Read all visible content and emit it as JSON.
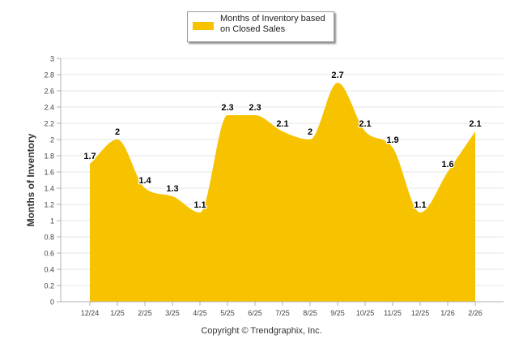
{
  "chart_data": {
    "type": "area",
    "title": "",
    "categories": [
      "12/24",
      "1/25",
      "2/25",
      "3/25",
      "4/25",
      "5/25",
      "6/25",
      "7/25",
      "8/25",
      "9/25",
      "10/25",
      "11/25",
      "12/25",
      "1/26",
      "2/26"
    ],
    "series": [
      {
        "name": "Months of Inventory based on Closed Sales",
        "values": [
          1.7,
          2,
          1.4,
          1.3,
          1.1,
          2.3,
          2.3,
          2.1,
          2,
          2.7,
          2.1,
          1.9,
          1.1,
          1.6,
          2.1
        ],
        "labels": [
          "1.7",
          "2",
          "1.4",
          "1.3",
          "1.1",
          "2.3",
          "2.3",
          "2.1",
          "2",
          "2.7",
          "2.1",
          "1.9",
          "1.1",
          "1.6",
          "2.1"
        ],
        "color": "#f7c300"
      }
    ],
    "xlabel": "",
    "ylabel": "Months of Inventory",
    "ylim": [
      0,
      3
    ],
    "yticks": [
      "0",
      "0.2",
      "0.4",
      "0.6",
      "0.8",
      "1",
      "1.2",
      "1.4",
      "1.6",
      "1.8",
      "2",
      "2.2",
      "2.4",
      "2.6",
      "2.8",
      "3"
    ],
    "grid": true,
    "legend_position": "top-center"
  },
  "legend": {
    "label": "Months of Inventory based on Closed Sales",
    "color": "#f7c300"
  },
  "copyright": "Copyright © Trendgraphix, Inc."
}
